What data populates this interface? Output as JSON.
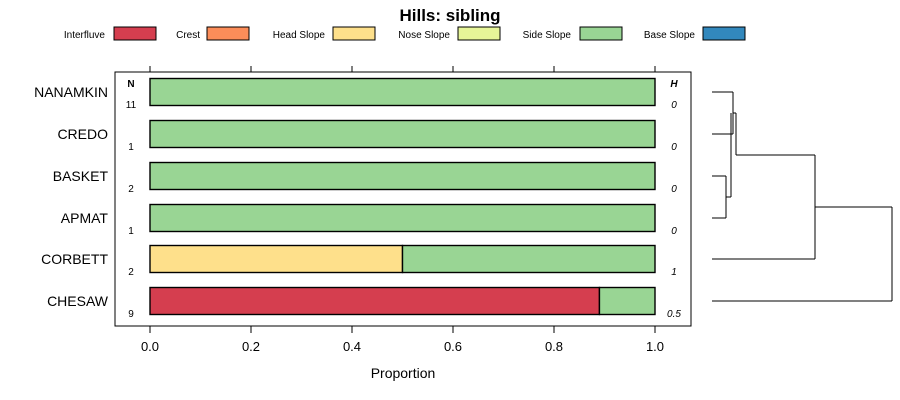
{
  "chart_data": {
    "type": "bar",
    "stacked": true,
    "orientation": "horizontal",
    "title": "Hills: sibling",
    "xlabel": "Proportion",
    "xlim": [
      0,
      1
    ],
    "xticks": [
      "0.0",
      "0.2",
      "0.4",
      "0.6",
      "0.8",
      "1.0"
    ],
    "xtick_values": [
      0,
      0.2,
      0.4,
      0.6,
      0.8,
      1.0
    ],
    "n_header": "N",
    "h_header": "H",
    "legend_position": "top",
    "legend": [
      {
        "name": "Interfluve",
        "color": "#d53e4f"
      },
      {
        "name": "Crest",
        "color": "#fc8d59"
      },
      {
        "name": "Head Slope",
        "color": "#fee08b"
      },
      {
        "name": "Nose Slope",
        "color": "#e6f598"
      },
      {
        "name": "Side Slope",
        "color": "#99d594"
      },
      {
        "name": "Base Slope",
        "color": "#3288bd"
      }
    ],
    "categories": [
      "NANAMKIN",
      "CREDO",
      "BASKET",
      "APMAT",
      "CORBETT",
      "CHESAW"
    ],
    "n": [
      "11",
      "1",
      "2",
      "1",
      "2",
      "9"
    ],
    "h": [
      "0",
      "0",
      "0",
      "0",
      "1",
      "0.5"
    ],
    "series": [
      {
        "name": "Interfluve",
        "values": [
          0,
          0,
          0,
          0,
          0,
          0.89
        ]
      },
      {
        "name": "Crest",
        "values": [
          0,
          0,
          0,
          0,
          0,
          0
        ]
      },
      {
        "name": "Head Slope",
        "values": [
          0,
          0,
          0,
          0,
          0.5,
          0
        ]
      },
      {
        "name": "Nose Slope",
        "values": [
          0,
          0,
          0,
          0,
          0,
          0
        ]
      },
      {
        "name": "Side Slope",
        "values": [
          1,
          1,
          1,
          1,
          0.5,
          0.11
        ]
      },
      {
        "name": "Base Slope",
        "values": [
          0,
          0,
          0,
          0,
          0,
          0
        ]
      }
    ],
    "dendrogram": true,
    "grid": false
  }
}
